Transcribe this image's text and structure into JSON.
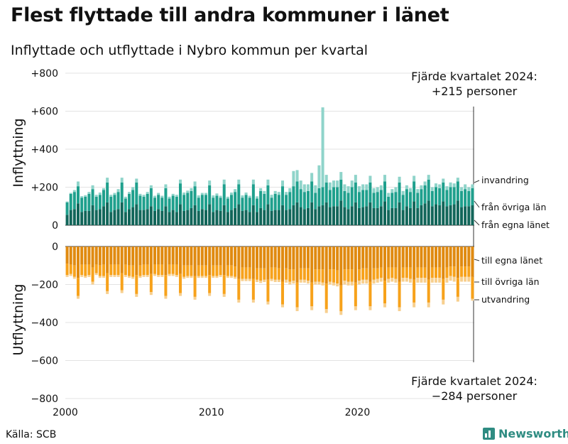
{
  "title": "Flest flyttade till andra kommuner i länet",
  "subtitle": "Inflyttade och utflyttade i Nybro kommun per kvartal",
  "source": "Källa: SCB",
  "brand": "Newsworthy",
  "colors": {
    "in_egna": "#12665a",
    "in_ovriga": "#1fa08d",
    "in_invandring": "#8fd4ca",
    "out_egna": "#e08a10",
    "out_ovriga": "#f7a21b",
    "out_utvandring": "#f7cf8e"
  },
  "chart_data": {
    "type": "bar",
    "stacked": true,
    "x_start": 2000,
    "x_step": 0.25,
    "x_ticks": [
      "2000",
      "2010",
      "2020"
    ],
    "y_ticks": [
      "+800",
      "+600",
      "+400",
      "+200",
      "0",
      "0",
      "−200",
      "−400",
      "−600",
      "−800"
    ],
    "top_ylim": [
      0,
      800
    ],
    "bottom_ylim": [
      -800,
      0
    ],
    "top_ylabel": "Inflyttning",
    "bottom_ylabel": "Utflyttning",
    "top_series_labels": [
      "invandring",
      "från övriga län",
      "från egna länet"
    ],
    "bottom_series_labels": [
      "till egna länet",
      "till övriga län",
      "utvandring"
    ],
    "annotation_top": [
      "Fjärde kvartalet 2024:",
      "+215 personer"
    ],
    "annotation_bottom": [
      "Fjärde kvartalet 2024:",
      "−284 personer"
    ],
    "in_egna": [
      55,
      80,
      85,
      115,
      70,
      75,
      75,
      105,
      80,
      85,
      100,
      120,
      70,
      80,
      85,
      120,
      70,
      85,
      95,
      110,
      80,
      80,
      85,
      100,
      75,
      85,
      75,
      100,
      70,
      80,
      70,
      110,
      75,
      80,
      90,
      105,
      75,
      85,
      80,
      110,
      70,
      80,
      75,
      105,
      70,
      80,
      90,
      110,
      75,
      80,
      70,
      105,
      70,
      90,
      80,
      110,
      75,
      80,
      80,
      105,
      80,
      85,
      105,
      120,
      95,
      85,
      90,
      120,
      85,
      100,
      105,
      120,
      95,
      100,
      100,
      130,
      95,
      85,
      100,
      120,
      90,
      95,
      100,
      120,
      90,
      90,
      100,
      125,
      80,
      90,
      90,
      120,
      80,
      100,
      90,
      125,
      90,
      105,
      115,
      130,
      100,
      110,
      105,
      125,
      100,
      105,
      110,
      130,
      95,
      100,
      100,
      105
    ],
    "in_ovriga": [
      65,
      85,
      90,
      90,
      75,
      75,
      90,
      85,
      70,
      75,
      85,
      105,
      80,
      80,
      90,
      105,
      70,
      80,
      90,
      115,
      75,
      70,
      80,
      95,
      70,
      75,
      70,
      95,
      70,
      75,
      80,
      110,
      85,
      90,
      90,
      100,
      70,
      75,
      80,
      100,
      75,
      75,
      70,
      110,
      70,
      80,
      85,
      105,
      70,
      80,
      75,
      110,
      70,
      90,
      85,
      100,
      70,
      85,
      80,
      100,
      80,
      90,
      100,
      110,
      95,
      90,
      90,
      110,
      85,
      95,
      95,
      105,
      90,
      100,
      100,
      110,
      85,
      85,
      100,
      105,
      85,
      90,
      85,
      105,
      80,
      85,
      85,
      105,
      70,
      80,
      85,
      105,
      80,
      90,
      85,
      105,
      80,
      85,
      95,
      110,
      80,
      90,
      90,
      100,
      85,
      95,
      90,
      100,
      85,
      90,
      80,
      90
    ],
    "in_invandring": [
      5,
      5,
      10,
      25,
      8,
      8,
      10,
      20,
      10,
      12,
      10,
      25,
      10,
      10,
      15,
      25,
      10,
      10,
      15,
      20,
      10,
      10,
      10,
      15,
      10,
      10,
      10,
      20,
      10,
      10,
      10,
      20,
      12,
      12,
      15,
      25,
      12,
      10,
      10,
      25,
      12,
      12,
      10,
      25,
      10,
      12,
      15,
      25,
      12,
      12,
      10,
      25,
      12,
      15,
      15,
      30,
      15,
      15,
      15,
      30,
      15,
      20,
      80,
      60,
      45,
      40,
      35,
      45,
      40,
      120,
      420,
      40,
      40,
      35,
      35,
      40,
      35,
      35,
      35,
      40,
      30,
      30,
      30,
      35,
      25,
      25,
      25,
      35,
      20,
      20,
      25,
      30,
      20,
      20,
      20,
      30,
      20,
      20,
      20,
      25,
      20,
      20,
      20,
      20,
      20,
      25,
      20,
      20,
      20,
      25,
      20,
      20
    ],
    "out_egna": [
      -90,
      -95,
      -100,
      -165,
      -95,
      -95,
      -95,
      -110,
      -95,
      -100,
      -95,
      -140,
      -95,
      -95,
      -95,
      -140,
      -95,
      -100,
      -100,
      -150,
      -100,
      -95,
      -95,
      -145,
      -95,
      -95,
      -95,
      -150,
      -95,
      -95,
      -95,
      -145,
      -100,
      -100,
      -100,
      -155,
      -100,
      -100,
      -100,
      -150,
      -100,
      -100,
      -100,
      -150,
      -100,
      -100,
      -105,
      -170,
      -110,
      -110,
      -110,
      -170,
      -115,
      -115,
      -115,
      -175,
      -110,
      -110,
      -115,
      -185,
      -115,
      -120,
      -120,
      -190,
      -115,
      -115,
      -115,
      -190,
      -120,
      -120,
      -120,
      -195,
      -120,
      -120,
      -125,
      -205,
      -120,
      -120,
      -120,
      -190,
      -120,
      -115,
      -115,
      -185,
      -115,
      -115,
      -110,
      -180,
      -110,
      -110,
      -110,
      -185,
      -110,
      -110,
      -110,
      -175,
      -110,
      -110,
      -110,
      -175,
      -110,
      -110,
      -110,
      -170,
      -110,
      -105,
      -105,
      -165,
      -105,
      -105,
      -105,
      -160
    ],
    "out_ovriga": [
      -60,
      -50,
      -60,
      -95,
      -55,
      -60,
      -55,
      -75,
      -45,
      -55,
      -60,
      -95,
      -55,
      -55,
      -55,
      -90,
      -55,
      -55,
      -60,
      -100,
      -55,
      -55,
      -55,
      -95,
      -50,
      -55,
      -55,
      -110,
      -50,
      -50,
      -55,
      -100,
      -60,
      -55,
      -55,
      -110,
      -55,
      -55,
      -55,
      -95,
      -55,
      -55,
      -50,
      -100,
      -55,
      -55,
      -55,
      -110,
      -60,
      -60,
      -60,
      -110,
      -60,
      -65,
      -60,
      -115,
      -60,
      -65,
      -60,
      -120,
      -60,
      -65,
      -60,
      -130,
      -60,
      -60,
      -65,
      -125,
      -65,
      -65,
      -70,
      -135,
      -65,
      -70,
      -70,
      -135,
      -60,
      -65,
      -65,
      -125,
      -60,
      -60,
      -60,
      -130,
      -60,
      -55,
      -55,
      -120,
      -60,
      -55,
      -60,
      -135,
      -55,
      -55,
      -60,
      -120,
      -55,
      -55,
      -55,
      -120,
      -55,
      -55,
      -55,
      -110,
      -55,
      -50,
      -55,
      -100,
      -55,
      -55,
      -55,
      -115
    ],
    "out_utvandring": [
      -10,
      -10,
      -10,
      -15,
      -10,
      -10,
      -10,
      -15,
      -10,
      -10,
      -10,
      -15,
      -10,
      -10,
      -10,
      -15,
      -10,
      -10,
      -10,
      -15,
      -10,
      -10,
      -10,
      -15,
      -10,
      -10,
      -10,
      -15,
      -10,
      -10,
      -10,
      -15,
      -10,
      -10,
      -10,
      -15,
      -10,
      -10,
      -10,
      -15,
      -10,
      -10,
      -10,
      -15,
      -10,
      -10,
      -10,
      -15,
      -12,
      -12,
      -12,
      -15,
      -12,
      -12,
      -12,
      -15,
      -12,
      -12,
      -12,
      -15,
      -15,
      -15,
      -15,
      -20,
      -15,
      -15,
      -15,
      -20,
      -15,
      -15,
      -15,
      -20,
      -15,
      -15,
      -15,
      -20,
      -20,
      -20,
      -20,
      -20,
      -20,
      -20,
      -20,
      -20,
      -20,
      -20,
      -20,
      -20,
      -20,
      -20,
      -20,
      -20,
      -20,
      -20,
      -20,
      -25,
      -25,
      -25,
      -25,
      -25,
      -25,
      -25,
      -25,
      -25,
      -25,
      -25,
      -25,
      -25,
      -25,
      -25,
      -25,
      -10
    ]
  }
}
